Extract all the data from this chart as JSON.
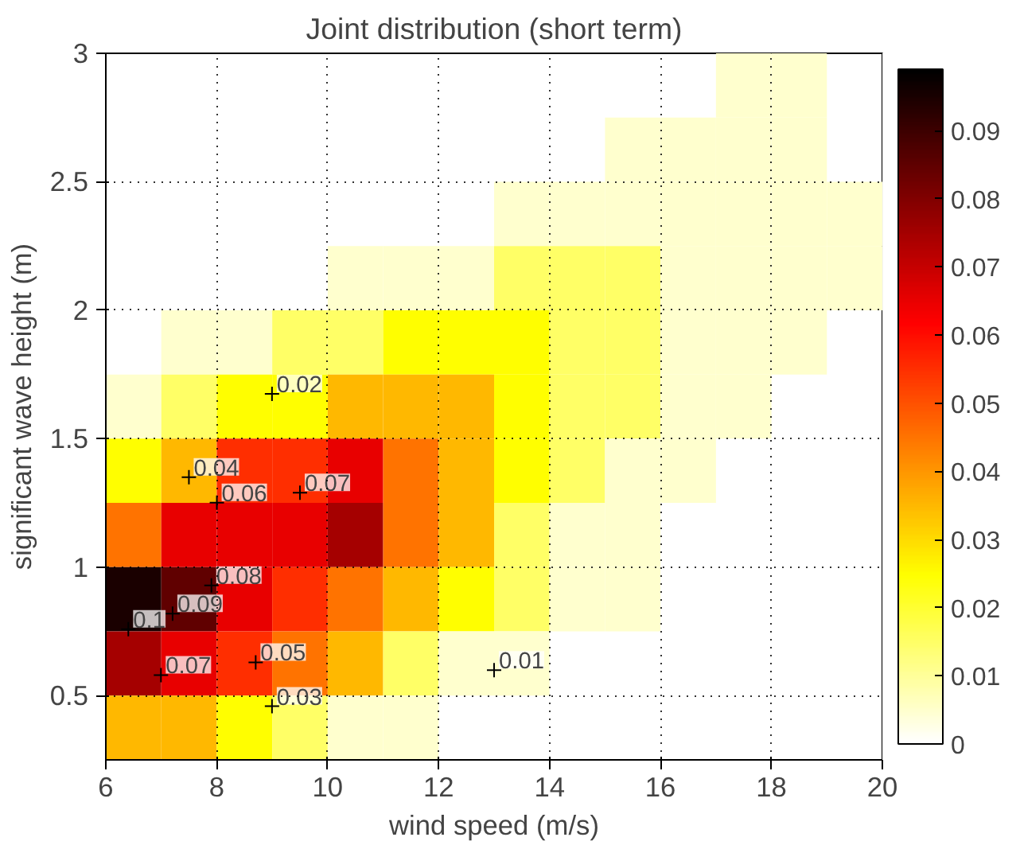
{
  "chart_data": {
    "type": "heatmap",
    "title": "Joint distribution (short term)",
    "xlabel": "wind speed (m/s)",
    "ylabel": "significant wave height (m)",
    "x": [
      6.5,
      7.5,
      8.5,
      9.5,
      10.5,
      11.5,
      12.5,
      13.5,
      14.5,
      15.5,
      16.5,
      17.5,
      18.5,
      19.5
    ],
    "y": [
      2.875,
      2.625,
      2.375,
      2.125,
      1.875,
      1.625,
      1.375,
      1.125,
      0.875,
      0.625,
      0.375
    ],
    "cells": [
      [
        null,
        null,
        null,
        null,
        null,
        null,
        null,
        null,
        null,
        null,
        null,
        0.005,
        0.005,
        null
      ],
      [
        null,
        null,
        null,
        null,
        null,
        null,
        null,
        null,
        null,
        0.005,
        0.005,
        0.005,
        0.005,
        null
      ],
      [
        null,
        null,
        null,
        null,
        null,
        null,
        null,
        0.005,
        0.005,
        0.005,
        0.005,
        0.005,
        0.005,
        0.005
      ],
      [
        null,
        null,
        null,
        null,
        0.005,
        0.005,
        0.005,
        0.015,
        0.015,
        0.015,
        0.005,
        0.005,
        0.005,
        0.005
      ],
      [
        null,
        0.005,
        0.005,
        0.015,
        0.015,
        0.025,
        0.025,
        0.025,
        0.015,
        0.015,
        0.005,
        0.005,
        0.005,
        null
      ],
      [
        0.005,
        0.015,
        0.025,
        0.025,
        0.035,
        0.035,
        0.035,
        0.025,
        0.015,
        0.015,
        0.005,
        0.005,
        null,
        null
      ],
      [
        0.025,
        0.035,
        0.055,
        0.055,
        0.065,
        0.045,
        0.035,
        0.025,
        0.015,
        0.005,
        0.005,
        null,
        null,
        null
      ],
      [
        0.045,
        0.065,
        0.065,
        0.065,
        0.075,
        0.045,
        0.035,
        0.015,
        0.005,
        0.005,
        null,
        null,
        null,
        null
      ],
      [
        0.095,
        0.085,
        0.065,
        0.055,
        0.045,
        0.035,
        0.025,
        0.015,
        0.005,
        0.005,
        null,
        null,
        null,
        null
      ],
      [
        0.075,
        0.065,
        0.055,
        0.045,
        0.035,
        0.015,
        0.005,
        0.005,
        null,
        null,
        null,
        null,
        null,
        null
      ],
      [
        0.035,
        0.035,
        0.025,
        0.015,
        0.005,
        0.005,
        null,
        null,
        null,
        null,
        null,
        null,
        null,
        null
      ]
    ],
    "xlim": [
      6,
      20
    ],
    "xticks": [
      6,
      8,
      10,
      12,
      14,
      16,
      18,
      20
    ],
    "ylim": [
      0.25,
      3
    ],
    "yticks": [
      0.5,
      1,
      1.5,
      2,
      2.5,
      3
    ],
    "clim": [
      0,
      0.099
    ],
    "cticks": [
      0,
      0.01,
      0.02,
      0.03,
      0.04,
      0.05,
      0.06,
      0.07,
      0.08,
      0.09
    ],
    "grid": true,
    "annotations": [
      "0.02",
      "0.04",
      "0.06",
      "0.07",
      "0.08",
      "0.09",
      "0.1",
      "0.07",
      "0.05",
      "0.03",
      "0.01"
    ]
  }
}
